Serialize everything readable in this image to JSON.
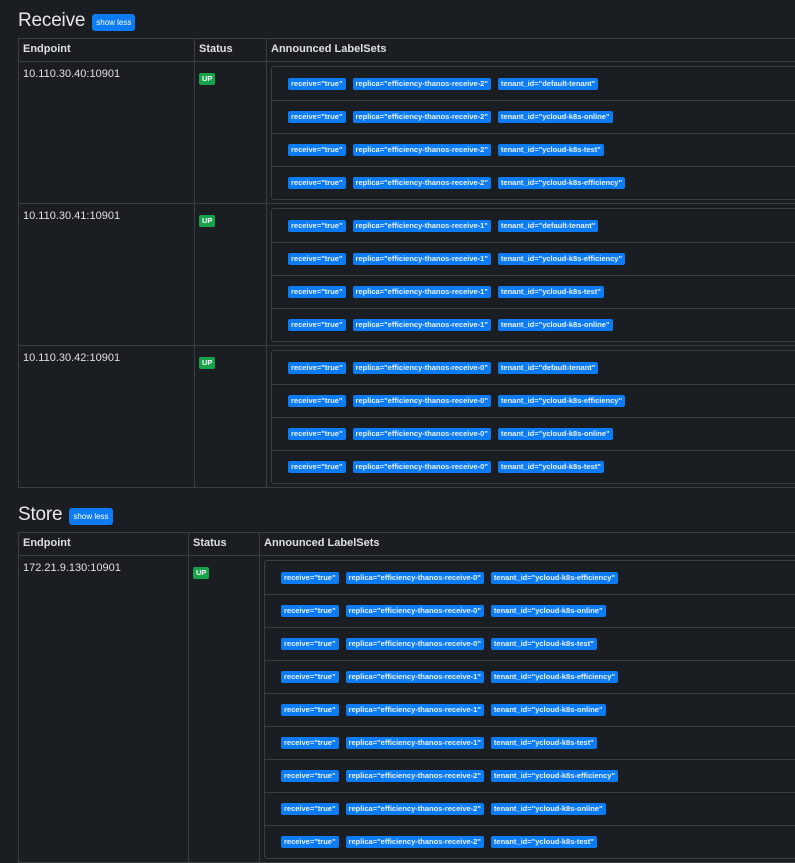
{
  "receive": {
    "title": "Receive",
    "toggle_label": "show less",
    "columns": [
      "Endpoint",
      "Status",
      "Announced LabelSets"
    ],
    "rows": [
      {
        "endpoint": "10.110.30.40:10901",
        "status": "UP",
        "labelsets": [
          [
            "receive=\"true\"",
            "replica=\"efficiency-thanos-receive-2\"",
            "tenant_id=\"default-tenant\""
          ],
          [
            "receive=\"true\"",
            "replica=\"efficiency-thanos-receive-2\"",
            "tenant_id=\"ycloud-k8s-online\""
          ],
          [
            "receive=\"true\"",
            "replica=\"efficiency-thanos-receive-2\"",
            "tenant_id=\"ycloud-k8s-test\""
          ],
          [
            "receive=\"true\"",
            "replica=\"efficiency-thanos-receive-2\"",
            "tenant_id=\"ycloud-k8s-efficiency\""
          ]
        ]
      },
      {
        "endpoint": "10.110.30.41:10901",
        "status": "UP",
        "labelsets": [
          [
            "receive=\"true\"",
            "replica=\"efficiency-thanos-receive-1\"",
            "tenant_id=\"default-tenant\""
          ],
          [
            "receive=\"true\"",
            "replica=\"efficiency-thanos-receive-1\"",
            "tenant_id=\"ycloud-k8s-efficiency\""
          ],
          [
            "receive=\"true\"",
            "replica=\"efficiency-thanos-receive-1\"",
            "tenant_id=\"ycloud-k8s-test\""
          ],
          [
            "receive=\"true\"",
            "replica=\"efficiency-thanos-receive-1\"",
            "tenant_id=\"ycloud-k8s-online\""
          ]
        ]
      },
      {
        "endpoint": "10.110.30.42:10901",
        "status": "UP",
        "labelsets": [
          [
            "receive=\"true\"",
            "replica=\"efficiency-thanos-receive-0\"",
            "tenant_id=\"default-tenant\""
          ],
          [
            "receive=\"true\"",
            "replica=\"efficiency-thanos-receive-0\"",
            "tenant_id=\"ycloud-k8s-efficiency\""
          ],
          [
            "receive=\"true\"",
            "replica=\"efficiency-thanos-receive-0\"",
            "tenant_id=\"ycloud-k8s-online\""
          ],
          [
            "receive=\"true\"",
            "replica=\"efficiency-thanos-receive-0\"",
            "tenant_id=\"ycloud-k8s-test\""
          ]
        ]
      }
    ]
  },
  "store": {
    "title": "Store",
    "toggle_label": "show less",
    "columns": [
      "Endpoint",
      "Status",
      "Announced LabelSets"
    ],
    "rows": [
      {
        "endpoint": "172.21.9.130:10901",
        "status": "UP",
        "labelsets": [
          [
            "receive=\"true\"",
            "replica=\"efficiency-thanos-receive-0\"",
            "tenant_id=\"ycloud-k8s-efficiency\""
          ],
          [
            "receive=\"true\"",
            "replica=\"efficiency-thanos-receive-0\"",
            "tenant_id=\"ycloud-k8s-online\""
          ],
          [
            "receive=\"true\"",
            "replica=\"efficiency-thanos-receive-0\"",
            "tenant_id=\"ycloud-k8s-test\""
          ],
          [
            "receive=\"true\"",
            "replica=\"efficiency-thanos-receive-1\"",
            "tenant_id=\"ycloud-k8s-efficiency\""
          ],
          [
            "receive=\"true\"",
            "replica=\"efficiency-thanos-receive-1\"",
            "tenant_id=\"ycloud-k8s-online\""
          ],
          [
            "receive=\"true\"",
            "replica=\"efficiency-thanos-receive-1\"",
            "tenant_id=\"ycloud-k8s-test\""
          ],
          [
            "receive=\"true\"",
            "replica=\"efficiency-thanos-receive-2\"",
            "tenant_id=\"ycloud-k8s-efficiency\""
          ],
          [
            "receive=\"true\"",
            "replica=\"efficiency-thanos-receive-2\"",
            "tenant_id=\"ycloud-k8s-online\""
          ],
          [
            "receive=\"true\"",
            "replica=\"efficiency-thanos-receive-2\"",
            "tenant_id=\"ycloud-k8s-test\""
          ]
        ]
      }
    ]
  },
  "colors": {
    "background": "#1a1d21",
    "accent": "#0d7cf2",
    "status_up": "#17a34a",
    "border": "#3a3d42"
  }
}
